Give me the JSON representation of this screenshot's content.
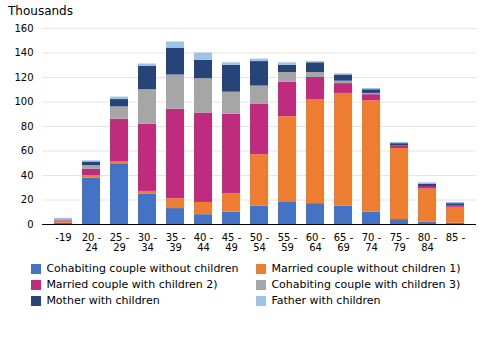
{
  "chart_data": {
    "type": "bar",
    "title": "Thousands",
    "categories": [
      "-19",
      "20 -\n24",
      "25 -\n29",
      "30 -\n34",
      "35 -\n39",
      "40 -\n44",
      "45 -\n49",
      "50 -\n54",
      "55 -\n59",
      "60 -\n64",
      "65 -\n69",
      "70 -\n74",
      "75 -\n79",
      "80 -\n84",
      "85 -"
    ],
    "series": [
      {
        "name": "Cohabiting couple without children",
        "color": "#4472c4",
        "values": [
          1,
          38,
          49,
          25,
          13,
          8,
          10,
          15,
          18,
          17,
          15,
          10,
          4,
          2,
          1
        ]
      },
      {
        "name": "Married couple without children 1)",
        "color": "#ed7d31",
        "values": [
          1,
          2,
          2,
          2,
          8,
          10,
          15,
          42,
          70,
          85,
          92,
          91,
          58,
          27,
          13
        ]
      },
      {
        "name": "Married couple with children 2)",
        "color": "#bf2c7e",
        "values": [
          1,
          5,
          35,
          55,
          73,
          73,
          65,
          41,
          28,
          18,
          8,
          5,
          2,
          2,
          1
        ]
      },
      {
        "name": "Cohabiting couple with children 3)",
        "color": "#a6a6a6",
        "values": [
          1,
          3,
          10,
          28,
          28,
          28,
          18,
          15,
          8,
          4,
          2,
          1,
          0,
          0,
          0
        ]
      },
      {
        "name": "Mother with children",
        "color": "#264478",
        "values": [
          0,
          3,
          6,
          19,
          22,
          15,
          22,
          20,
          6,
          8,
          5,
          3,
          2,
          2,
          2
        ]
      },
      {
        "name": "Father with children",
        "color": "#9dc3e6",
        "values": [
          1,
          1,
          2,
          2,
          5,
          6,
          2,
          2,
          2,
          1,
          1,
          1,
          1,
          1,
          1
        ]
      }
    ],
    "ylim": [
      0,
      160
    ],
    "yticks": [
      0,
      20,
      40,
      60,
      80,
      100,
      120,
      140,
      160
    ],
    "grid": true,
    "stacked": true,
    "legend": "bottom"
  }
}
